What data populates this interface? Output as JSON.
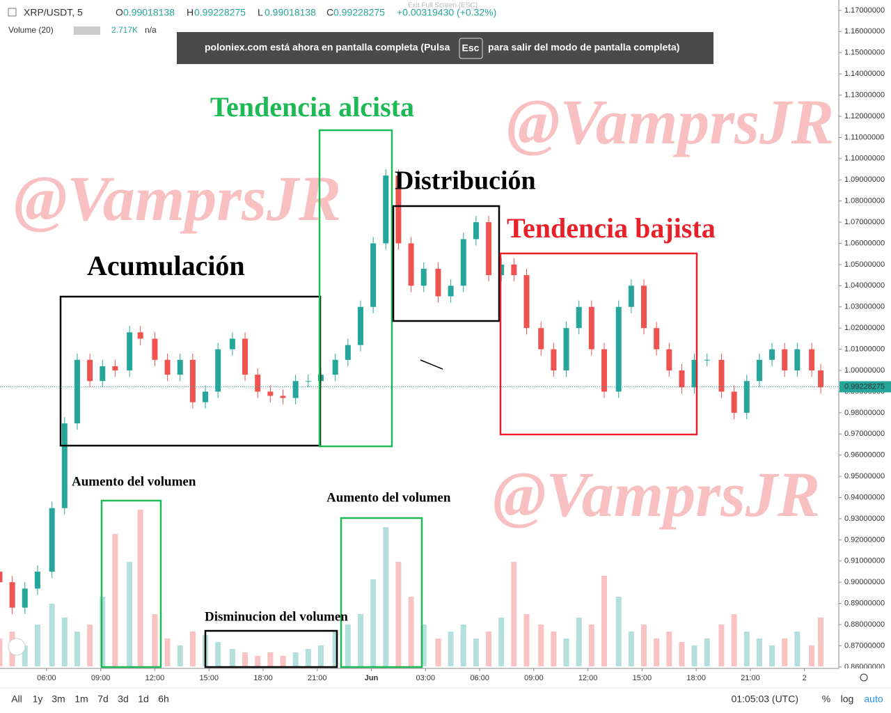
{
  "chart_data": {
    "type": "candlestick",
    "ui": {
      "symbol": "XRP/USDT, 5",
      "o_label": "O",
      "open": "0.99018138",
      "h_label": "H",
      "high": "0.99228275",
      "l_label": "L",
      "low": "0.99018138",
      "c_label": "C",
      "close": "0.99228275",
      "change": "+0.00319430 (+0.32%)",
      "exit": "Exit Full Screen (ESC)",
      "volume_title": "Volume (20)",
      "volume_value": "2.717K",
      "volume_na": "n/a",
      "banner": {
        "before": "poloniex.com está ahora en pantalla completa (Pulsa",
        "key": "Esc",
        "after": "para salir del modo de pantalla completa)"
      },
      "ranges": [
        "All",
        "1y",
        "3m",
        "1m",
        "7d",
        "3d",
        "1d",
        "6h"
      ],
      "clock": "01:05:03 (UTC)",
      "percent": "%",
      "log": "log",
      "auto": "auto"
    },
    "watermarks": [
      "@VamprsJR",
      "@VamprsJR",
      "@VamprsJR"
    ],
    "annotations": [
      {
        "text": "Tendencia alcista",
        "color": "#1db954"
      },
      {
        "text": "Distribución",
        "color": "#000000"
      },
      {
        "text": "Acumulación",
        "color": "#000000"
      },
      {
        "text": "Tendencia bajista",
        "color": "#e8202a"
      },
      {
        "text": "Aumento del volumen",
        "color": "#000000"
      },
      {
        "text": "Aumento del volumen",
        "color": "#000000"
      },
      {
        "text": "Disminucion del volumen",
        "color": "#000000"
      }
    ],
    "last_price": {
      "value": 0.99228275,
      "label": "0.99228275"
    },
    "x": [
      3.4,
      4.1,
      4.8,
      5.5,
      6.3,
      7.0,
      7.7,
      8.4,
      9.1,
      9.8,
      10.6,
      11.2,
      12.0,
      12.7,
      13.4,
      14.1,
      14.8,
      15.5,
      16.3,
      17.0,
      17.7,
      18.4,
      19.1,
      19.8,
      20.5,
      21.2,
      22.0,
      22.7,
      23.4,
      24.1,
      24.8,
      25.5,
      26.2,
      26.9,
      27.7,
      28.4,
      29.1,
      29.8,
      30.5,
      31.2,
      31.9,
      32.6,
      33.4,
      34.1,
      34.8,
      35.5,
      36.2,
      36.9,
      37.7,
      38.4,
      39.1,
      39.8,
      40.5,
      41.2,
      41.9,
      42.6,
      43.4,
      44.1,
      44.8,
      45.5,
      46.2,
      46.9,
      47.6,
      48.4,
      48.9
    ],
    "open": [
      0.905,
      0.9,
      0.888,
      0.897,
      0.905,
      0.935,
      0.975,
      1.005,
      0.995,
      1.002,
      1.0,
      1.018,
      1.015,
      1.005,
      0.998,
      1.005,
      0.985,
      0.99,
      1.01,
      1.015,
      0.998,
      0.99,
      0.988,
      0.987,
      0.995,
      0.995,
      0.998,
      1.005,
      1.012,
      1.03,
      1.06,
      1.092,
      1.06,
      1.04,
      1.048,
      1.035,
      1.04,
      1.062,
      1.07,
      1.045,
      1.05,
      1.045,
      1.02,
      1.01,
      1.0,
      1.02,
      1.03,
      1.01,
      0.99,
      1.03,
      1.04,
      1.02,
      1.01,
      1.0,
      0.992,
      1.005,
      1.005,
      0.99,
      0.98,
      0.995,
      1.005,
      1.01,
      1.0,
      1.01,
      1.0
    ],
    "high": [
      0.908,
      0.903,
      0.9,
      0.908,
      0.938,
      0.978,
      1.008,
      1.008,
      1.005,
      1.005,
      1.021,
      1.021,
      1.018,
      1.008,
      1.008,
      1.008,
      0.993,
      1.013,
      1.018,
      1.018,
      1.001,
      0.993,
      0.991,
      0.998,
      0.998,
      1.001,
      1.008,
      1.015,
      1.033,
      1.063,
      1.095,
      1.095,
      1.063,
      1.051,
      1.051,
      1.043,
      1.065,
      1.073,
      1.073,
      1.053,
      1.053,
      1.048,
      1.023,
      1.013,
      1.023,
      1.033,
      1.033,
      1.013,
      1.033,
      1.043,
      1.043,
      1.023,
      1.013,
      1.003,
      1.008,
      1.008,
      1.008,
      0.993,
      0.998,
      1.008,
      1.013,
      1.013,
      1.013,
      1.013,
      1.003
    ],
    "low": [
      0.897,
      0.885,
      0.885,
      0.894,
      0.902,
      0.932,
      0.972,
      0.992,
      0.992,
      0.997,
      0.997,
      1.012,
      1.002,
      0.995,
      0.995,
      0.982,
      0.982,
      0.987,
      1.007,
      0.995,
      0.987,
      0.985,
      0.984,
      0.984,
      0.992,
      0.992,
      0.995,
      1.002,
      1.009,
      1.027,
      1.057,
      1.057,
      1.037,
      1.037,
      1.032,
      1.032,
      1.037,
      1.059,
      1.042,
      1.042,
      1.042,
      1.017,
      1.007,
      0.997,
      0.997,
      1.017,
      1.007,
      0.987,
      0.987,
      1.027,
      1.017,
      1.007,
      0.997,
      0.989,
      0.989,
      1.002,
      0.987,
      0.977,
      0.977,
      0.992,
      1.002,
      0.997,
      0.997,
      0.997,
      0.989
    ],
    "close": [
      0.9,
      0.888,
      0.897,
      0.905,
      0.935,
      0.975,
      1.005,
      0.995,
      1.002,
      1.0,
      1.018,
      1.015,
      1.005,
      0.998,
      1.005,
      0.985,
      0.99,
      1.01,
      1.015,
      0.998,
      0.99,
      0.988,
      0.987,
      0.995,
      0.995,
      0.998,
      1.005,
      1.012,
      1.03,
      1.06,
      1.092,
      1.06,
      1.04,
      1.048,
      1.035,
      1.04,
      1.062,
      1.07,
      1.045,
      1.05,
      1.045,
      1.02,
      1.01,
      1.0,
      1.02,
      1.03,
      1.01,
      0.99,
      1.03,
      1.04,
      1.02,
      1.01,
      1.0,
      0.992,
      1.005,
      1.005,
      0.99,
      0.98,
      0.995,
      1.005,
      1.01,
      1.0,
      1.01,
      1.0,
      0.992
    ],
    "volume": [
      8,
      10,
      6,
      12,
      18,
      14,
      10,
      12,
      20,
      38,
      30,
      45,
      15,
      8,
      6,
      10,
      9,
      7,
      5,
      4,
      3,
      4,
      3,
      4,
      5,
      6,
      10,
      12,
      15,
      25,
      40,
      30,
      20,
      12,
      8,
      10,
      12,
      8,
      10,
      14,
      30,
      15,
      12,
      10,
      8,
      14,
      12,
      26,
      20,
      10,
      12,
      8,
      10,
      7,
      6,
      8,
      12,
      15,
      10,
      8,
      6,
      8,
      10,
      6,
      14
    ],
    "vlim": [
      0,
      60
    ],
    "up_color": "#26a69a",
    "down_color": "#ef5350",
    "xlim": [
      3.42,
      49.9
    ],
    "xticks": [
      {
        "value": 6,
        "label": "06:00"
      },
      {
        "value": 9,
        "label": "09:00"
      },
      {
        "value": 12,
        "label": "12:00"
      },
      {
        "value": 15,
        "label": "15:00"
      },
      {
        "value": 18,
        "label": "18:00"
      },
      {
        "value": 21,
        "label": "21:00"
      },
      {
        "value": 24,
        "label": "Jun"
      },
      {
        "value": 27,
        "label": "03:00"
      },
      {
        "value": 30,
        "label": "06:00"
      },
      {
        "value": 33,
        "label": "09:00"
      },
      {
        "value": 36,
        "label": "12:00"
      },
      {
        "value": 39,
        "label": "15:00"
      },
      {
        "value": 42,
        "label": "18:00"
      },
      {
        "value": 45,
        "label": "21:00"
      },
      {
        "value": 48,
        "label": "2"
      }
    ],
    "ylim": [
      0.8593,
      1.1749
    ],
    "yticks": [
      {
        "value": 1.17,
        "label": "1.17000000"
      },
      {
        "value": 1.16,
        "label": "1.16000000"
      },
      {
        "value": 1.15,
        "label": "1.15000000"
      },
      {
        "value": 1.14,
        "label": "1.14000000"
      },
      {
        "value": 1.13,
        "label": "1.13000000"
      },
      {
        "value": 1.12,
        "label": "1.12000000"
      },
      {
        "value": 1.11,
        "label": "1.11000000"
      },
      {
        "value": 1.1,
        "label": "1.10000000"
      },
      {
        "value": 1.09,
        "label": "1.09000000"
      },
      {
        "value": 1.08,
        "label": "1.08000000"
      },
      {
        "value": 1.07,
        "label": "1.07000000"
      },
      {
        "value": 1.06,
        "label": "1.06000000"
      },
      {
        "value": 1.05,
        "label": "1.05000000"
      },
      {
        "value": 1.04,
        "label": "1.04000000"
      },
      {
        "value": 1.03,
        "label": "1.03000000"
      },
      {
        "value": 1.02,
        "label": "1.02000000"
      },
      {
        "value": 1.01,
        "label": "1.01000000"
      },
      {
        "value": 1.0,
        "label": "1.00000000"
      },
      {
        "value": 0.99,
        "label": "0.99000000"
      },
      {
        "value": 0.98,
        "label": "0.98000000"
      },
      {
        "value": 0.97,
        "label": "0.97000000"
      },
      {
        "value": 0.96,
        "label": "0.96000000"
      },
      {
        "value": 0.95,
        "label": "0.95000000"
      },
      {
        "value": 0.94,
        "label": "0.94000000"
      },
      {
        "value": 0.93,
        "label": "0.93000000"
      },
      {
        "value": 0.92,
        "label": "0.92000000"
      },
      {
        "value": 0.91,
        "label": "0.91000000"
      },
      {
        "value": 0.9,
        "label": "0.90000000"
      },
      {
        "value": 0.89,
        "label": "0.89000000"
      },
      {
        "value": 0.88,
        "label": "0.88000000"
      },
      {
        "value": 0.87,
        "label": "0.87000000"
      },
      {
        "value": 0.86,
        "label": "0.86000000"
      }
    ]
  }
}
